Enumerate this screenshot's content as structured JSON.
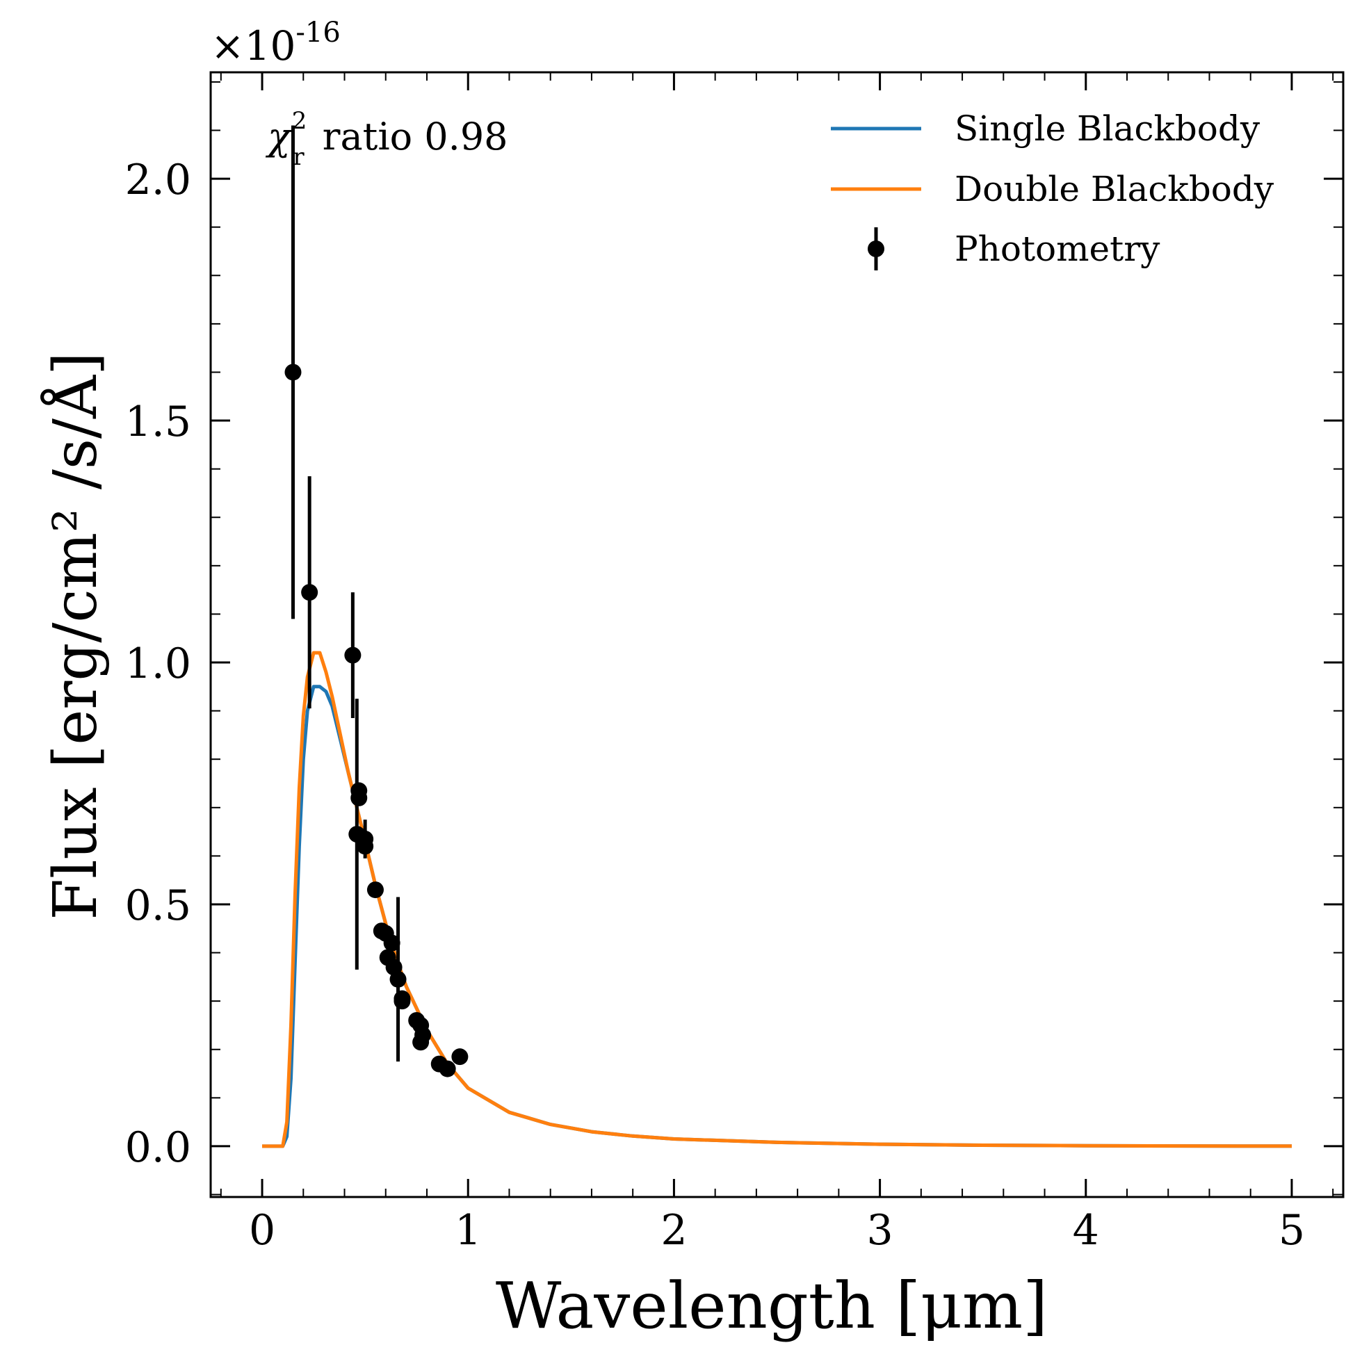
{
  "chart_data": {
    "type": "scatter",
    "title": "",
    "xlabel": "Wavelength [μm]",
    "ylabel": "Flux [erg/cm² /s/Å]",
    "y_multiplier": "×10",
    "y_multiplier_exponent": "-16",
    "xlim": [
      -0.25,
      5.25
    ],
    "ylim": [
      -0.105,
      2.22
    ],
    "x_ticks": [
      0,
      1,
      2,
      3,
      4,
      5
    ],
    "x_tick_labels": [
      "0",
      "1",
      "2",
      "3",
      "4",
      "5"
    ],
    "y_ticks": [
      0.0,
      0.5,
      1.0,
      1.5,
      2.0
    ],
    "y_tick_labels": [
      "0.0",
      "0.5",
      "1.0",
      "1.5",
      "2.0"
    ],
    "grid": false,
    "legend_position": "top-right",
    "annotation": {
      "symbol": "χ",
      "superscript": "2",
      "subscript": "r",
      "text": "ratio 0.98"
    },
    "series": [
      {
        "name": "Single Blackbody",
        "kind": "line",
        "color": "#1f77b4",
        "x": [
          0.0,
          0.05,
          0.1,
          0.12,
          0.14,
          0.16,
          0.18,
          0.2,
          0.22,
          0.25,
          0.28,
          0.31,
          0.34,
          0.38,
          0.42,
          0.46,
          0.5,
          0.55,
          0.6,
          0.65,
          0.7,
          0.8,
          0.9,
          1.0,
          1.2,
          1.4,
          1.6,
          1.8,
          2.0,
          2.5,
          3.0,
          3.5,
          4.0,
          4.5,
          5.0
        ],
        "y": [
          0.0,
          0.0,
          0.0,
          0.02,
          0.14,
          0.38,
          0.62,
          0.8,
          0.9,
          0.95,
          0.95,
          0.94,
          0.91,
          0.84,
          0.77,
          0.7,
          0.63,
          0.54,
          0.46,
          0.39,
          0.33,
          0.24,
          0.17,
          0.12,
          0.07,
          0.045,
          0.03,
          0.021,
          0.015,
          0.008,
          0.004,
          0.002,
          0.001,
          0.0005,
          0.0002
        ]
      },
      {
        "name": "Double Blackbody",
        "kind": "line",
        "color": "#ff7f0e",
        "x": [
          0.0,
          0.05,
          0.1,
          0.12,
          0.14,
          0.16,
          0.18,
          0.2,
          0.22,
          0.25,
          0.28,
          0.31,
          0.34,
          0.38,
          0.42,
          0.46,
          0.5,
          0.55,
          0.6,
          0.65,
          0.7,
          0.8,
          0.9,
          1.0,
          1.2,
          1.4,
          1.6,
          1.8,
          2.0,
          2.5,
          3.0,
          3.5,
          4.0,
          4.5,
          5.0
        ],
        "y": [
          0.0,
          0.0,
          0.0,
          0.05,
          0.25,
          0.52,
          0.74,
          0.89,
          0.97,
          1.02,
          1.02,
          0.98,
          0.93,
          0.85,
          0.77,
          0.7,
          0.63,
          0.54,
          0.46,
          0.39,
          0.33,
          0.24,
          0.17,
          0.12,
          0.07,
          0.045,
          0.03,
          0.021,
          0.015,
          0.008,
          0.004,
          0.002,
          0.001,
          0.0005,
          0.0002
        ]
      },
      {
        "name": "Photometry",
        "kind": "errorbar",
        "color": "#000000",
        "x": [
          0.15,
          0.23,
          0.44,
          0.46,
          0.47,
          0.47,
          0.48,
          0.5,
          0.5,
          0.55,
          0.58,
          0.6,
          0.61,
          0.63,
          0.64,
          0.66,
          0.68,
          0.68,
          0.75,
          0.77,
          0.77,
          0.78,
          0.86,
          0.9,
          0.96
        ],
        "y": [
          1.6,
          1.145,
          1.015,
          0.645,
          0.735,
          0.72,
          0.64,
          0.635,
          0.62,
          0.53,
          0.445,
          0.44,
          0.39,
          0.42,
          0.37,
          0.345,
          0.305,
          0.3,
          0.26,
          0.25,
          0.215,
          0.23,
          0.17,
          0.16,
          0.185
        ],
        "yerr": [
          0.51,
          0.24,
          0.13,
          0.28,
          0.0,
          0.0,
          0.0,
          0.04,
          0.0,
          0.0,
          0.0,
          0.0,
          0.0,
          0.0,
          0.0,
          0.17,
          0.0,
          0.0,
          0.0,
          0.0,
          0.0,
          0.0,
          0.0,
          0.0,
          0.0
        ]
      }
    ]
  }
}
